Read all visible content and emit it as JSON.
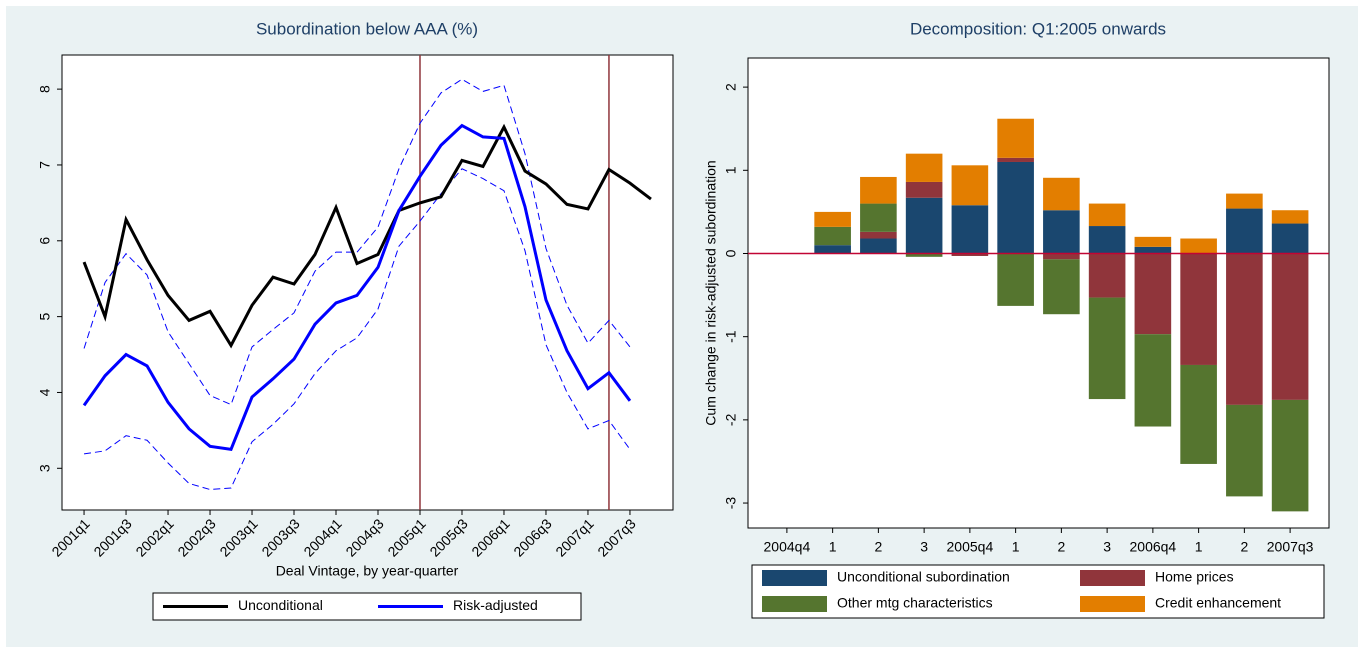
{
  "chart_data": [
    {
      "type": "line",
      "title": "Subordination below AAA (%)",
      "x_label": "Deal Vintage, by year-quarter",
      "categories": [
        "2001q1",
        null,
        "2001q3",
        null,
        "2002q1",
        null,
        "2002q3",
        null,
        "2003q1",
        null,
        "2003q3",
        null,
        "2004q1",
        null,
        "2004q3",
        null,
        "2005q1",
        null,
        "2005q3",
        null,
        "2006q1",
        null,
        "2006q3",
        null,
        "2007q1",
        null,
        "2007q3",
        null
      ],
      "series": [
        {
          "name": "Unconditional",
          "color": "#000000",
          "values": [
            5.72,
            5.0,
            6.28,
            5.75,
            5.28,
            4.95,
            5.07,
            4.62,
            5.15,
            5.52,
            5.43,
            5.82,
            6.44,
            5.7,
            5.82,
            6.4,
            6.5,
            6.58,
            7.06,
            6.98,
            7.5,
            6.92,
            6.75,
            6.48,
            6.42,
            6.94,
            6.76,
            6.55
          ]
        },
        {
          "name": "Risk-adjusted",
          "color": "#0000ff",
          "values": [
            3.83,
            4.22,
            4.5,
            4.35,
            3.87,
            3.52,
            3.29,
            3.25,
            3.94,
            4.18,
            4.44,
            4.9,
            5.18,
            5.28,
            5.65,
            6.4,
            6.85,
            7.26,
            7.52,
            7.37,
            7.35,
            6.45,
            5.22,
            4.55,
            4.05,
            4.26,
            3.89,
            null
          ]
        }
      ],
      "band_series": [
        {
          "color": "#0000ff",
          "values": [
            4.58,
            5.45,
            5.83,
            5.55,
            4.8,
            4.38,
            3.96,
            3.84,
            4.6,
            4.83,
            5.05,
            5.6,
            5.85,
            5.85,
            6.18,
            6.95,
            7.55,
            7.95,
            8.13,
            7.97,
            8.05,
            7.15,
            5.9,
            5.15,
            4.65,
            4.95,
            4.6,
            null
          ]
        },
        {
          "color": "#0000ff",
          "values": [
            3.19,
            3.23,
            3.43,
            3.37,
            3.07,
            2.8,
            2.72,
            2.74,
            3.35,
            3.58,
            3.85,
            4.25,
            4.55,
            4.72,
            5.1,
            5.93,
            6.26,
            6.62,
            6.95,
            6.82,
            6.66,
            5.87,
            4.63,
            4.0,
            3.52,
            3.63,
            3.25,
            null
          ]
        }
      ],
      "vlines": [
        16,
        25
      ],
      "vline_color": "#90353b",
      "ylim": [
        2.45,
        8.45
      ],
      "yticks": [
        3,
        4,
        5,
        6,
        7,
        8
      ],
      "grid": false
    },
    {
      "type": "stacked_bar",
      "title": "Decomposition: Q1:2005 onwards",
      "y_label": "Cum change in risk-adjusted subordination",
      "categories": [
        "2004q4",
        "1",
        "2",
        "3",
        "2005q4",
        "1",
        "2",
        "3",
        "2006q4",
        "1",
        "2",
        "2007q3"
      ],
      "series": [
        {
          "name": "Unconditional subordination",
          "color": "#1a476f",
          "values": [
            0,
            0.1,
            0.18,
            0.67,
            0.58,
            1.1,
            0.52,
            0.33,
            0.08,
            0,
            0.54,
            0.36
          ]
        },
        {
          "name": "Home prices",
          "color": "#90353b",
          "values": [
            0,
            0,
            0.08,
            0.19,
            -0.03,
            0.05,
            -0.07,
            -0.53,
            -0.97,
            -1.34,
            -1.82,
            -1.76
          ]
        },
        {
          "name": "Other mtg characteristics",
          "color": "#55752f",
          "values": [
            0,
            0.22,
            0.34,
            -0.04,
            0,
            -0.63,
            -0.66,
            -1.22,
            -1.11,
            -1.19,
            -1.1,
            -1.34
          ]
        },
        {
          "name": "Credit enhancement",
          "color": "#e37e00",
          "values": [
            0,
            0.18,
            0.32,
            0.34,
            0.48,
            0.47,
            0.39,
            0.27,
            0.12,
            0.18,
            0.18,
            0.16
          ]
        }
      ],
      "hline": 0,
      "hline_color": "#c10534",
      "ylim": [
        -3.3,
        2.35
      ],
      "yticks": [
        -3,
        -2,
        -1,
        0,
        1,
        2
      ],
      "grid": false
    }
  ]
}
